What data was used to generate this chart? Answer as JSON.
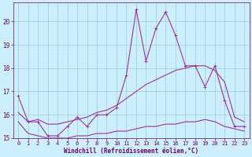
{
  "xlabel": "Windchill (Refroidissement éolien,°C)",
  "background_color": "#cceeff",
  "grid_color": "#99cccc",
  "line_color": "#993399",
  "xlim": [
    -0.5,
    23.5
  ],
  "ylim": [
    15.0,
    20.8
  ],
  "yticks": [
    15,
    16,
    17,
    18,
    19,
    20
  ],
  "xticks": [
    0,
    1,
    2,
    3,
    4,
    5,
    6,
    7,
    8,
    9,
    10,
    11,
    12,
    13,
    14,
    15,
    16,
    17,
    18,
    19,
    20,
    21,
    22,
    23
  ],
  "line1_x": [
    0,
    1,
    2,
    3,
    4,
    5,
    6,
    7,
    8,
    9,
    10,
    11,
    12,
    13,
    14,
    15,
    16,
    17,
    18,
    19,
    20,
    21,
    22,
    23
  ],
  "line1_y": [
    16.8,
    15.7,
    15.7,
    15.1,
    15.1,
    15.5,
    15.9,
    15.5,
    16.0,
    16.0,
    16.3,
    17.7,
    20.5,
    18.3,
    19.7,
    20.4,
    19.4,
    18.1,
    18.1,
    17.2,
    18.1,
    16.6,
    15.5,
    15.5
  ],
  "line2_x": [
    0,
    1,
    2,
    3,
    4,
    5,
    6,
    7,
    8,
    9,
    10,
    11,
    12,
    13,
    14,
    15,
    16,
    17,
    18,
    19,
    20,
    21,
    22,
    23
  ],
  "line2_y": [
    16.1,
    15.7,
    15.8,
    15.6,
    15.6,
    15.7,
    15.8,
    15.9,
    16.1,
    16.2,
    16.4,
    16.7,
    17.0,
    17.3,
    17.5,
    17.7,
    17.9,
    18.0,
    18.1,
    18.1,
    17.9,
    17.4,
    15.9,
    15.7
  ],
  "line3_x": [
    0,
    1,
    2,
    3,
    4,
    5,
    6,
    7,
    8,
    9,
    10,
    11,
    12,
    13,
    14,
    15,
    16,
    17,
    18,
    19,
    20,
    21,
    22,
    23
  ],
  "line3_y": [
    15.7,
    15.2,
    15.1,
    15.0,
    15.0,
    15.0,
    15.1,
    15.1,
    15.2,
    15.2,
    15.3,
    15.3,
    15.4,
    15.5,
    15.5,
    15.6,
    15.6,
    15.7,
    15.7,
    15.8,
    15.7,
    15.5,
    15.4,
    15.3
  ],
  "tick_fontsize": 5,
  "xlabel_fontsize": 5.5,
  "tick_color": "#660066",
  "xlabel_color": "#660066"
}
